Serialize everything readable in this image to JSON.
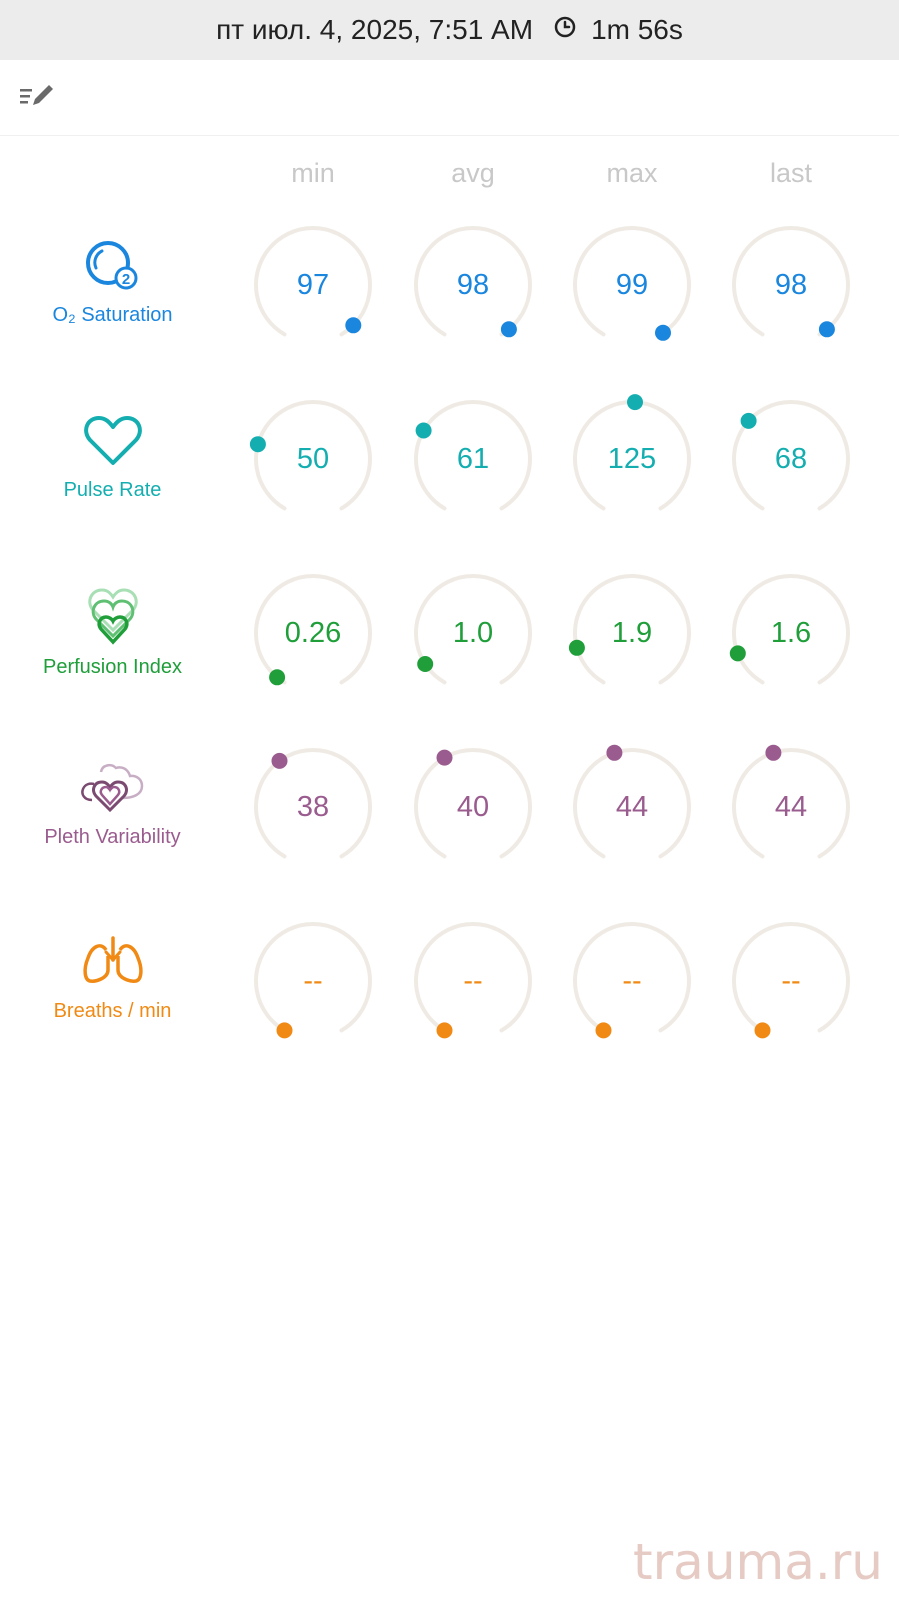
{
  "status_bar": {
    "datetime": "пт июл. 4, 2025, 7:51 AM",
    "duration": "1m 56s"
  },
  "toolbar": {
    "edit_icon": "edit-list-icon"
  },
  "columns": [
    "min",
    "avg",
    "max",
    "last"
  ],
  "rows": [
    {
      "key": "spo2",
      "label": "O₂ Saturation",
      "icon": "o2-saturation-icon",
      "color": "#1a86de",
      "values": [
        "97",
        "98",
        "99",
        "98"
      ],
      "levels": [
        0.95,
        0.97,
        0.99,
        0.97
      ]
    },
    {
      "key": "pulse",
      "label": "Pulse Rate",
      "icon": "heart-icon",
      "color": "#14aeb0",
      "values": [
        "50",
        "61",
        "125",
        "68"
      ],
      "levels": [
        0.25,
        0.3,
        0.51,
        0.34
      ]
    },
    {
      "key": "pi",
      "label": "Perfusion Index",
      "icon": "perfusion-index-icon",
      "color": "#1f9e3a",
      "values": [
        "0.26",
        "1.0",
        "1.9",
        "1.6"
      ],
      "levels": [
        0.03,
        0.09,
        0.15,
        0.13
      ]
    },
    {
      "key": "pvi",
      "label": "Pleth Variability",
      "icon": "pleth-variability-icon",
      "color": "#9a5c8f",
      "values": [
        "38",
        "40",
        "44",
        "44"
      ],
      "levels": [
        0.38,
        0.4,
        0.44,
        0.44
      ]
    },
    {
      "key": "rr",
      "label": "Breaths / min",
      "icon": "lungs-icon",
      "color": "#f08a14",
      "values": [
        "--",
        "--",
        "--",
        "--"
      ],
      "levels": [
        0,
        0,
        0,
        0
      ]
    }
  ],
  "colors": {
    "track": "#efebe4",
    "header": "#c8c8c8"
  },
  "watermark": "trauma.ru"
}
